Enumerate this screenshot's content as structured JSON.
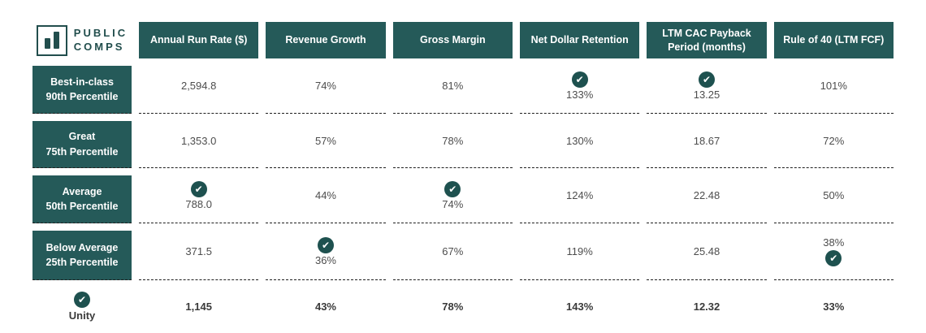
{
  "brand": {
    "line1": "PUBLIC",
    "line2": "COMPS"
  },
  "icons": {
    "check": "✔",
    "logo": "bar-chart"
  },
  "colors": {
    "teal_header": "#255a59",
    "check_circle": "#1e514f",
    "logo": "#224e4d"
  },
  "chart_data": {
    "type": "table",
    "title": "Public Comps SaaS benchmark table vs Unity",
    "columns": [
      "Annual Run Rate ($)",
      "Revenue Growth",
      "Gross Margin",
      "Net Dollar Retention",
      "LTM CAC Payback Period (months)",
      "Rule of 40 (LTM FCF)"
    ],
    "rows": [
      {
        "label_line1": "Best-in-class",
        "label_line2": "90th Percentile",
        "values": [
          "2,594.8",
          "74%",
          "81%",
          "133%",
          "13.25",
          "101%"
        ],
        "checks": [
          false,
          false,
          false,
          true,
          true,
          false
        ]
      },
      {
        "label_line1": "Great",
        "label_line2": "75th Percentile",
        "values": [
          "1,353.0",
          "57%",
          "78%",
          "130%",
          "18.67",
          "72%"
        ],
        "checks": [
          false,
          false,
          false,
          false,
          false,
          false
        ]
      },
      {
        "label_line1": "Average",
        "label_line2": "50th Percentile",
        "values": [
          "788.0",
          "44%",
          "74%",
          "124%",
          "22.48",
          "50%"
        ],
        "checks": [
          true,
          false,
          true,
          false,
          false,
          false
        ]
      },
      {
        "label_line1": "Below Average",
        "label_line2": "25th Percentile",
        "values": [
          "371.5",
          "36%",
          "67%",
          "119%",
          "25.48",
          "38%"
        ],
        "checks": [
          false,
          true,
          false,
          false,
          false,
          true
        ],
        "check_position_note": "Rule of 40 check appears below the value"
      },
      {
        "label_line1": "Unity",
        "label_line2": "",
        "values": [
          "1,145",
          "43%",
          "78%",
          "143%",
          "12.32",
          "33%"
        ],
        "checks": [
          false,
          false,
          false,
          false,
          false,
          false
        ],
        "label_check": true
      }
    ]
  }
}
